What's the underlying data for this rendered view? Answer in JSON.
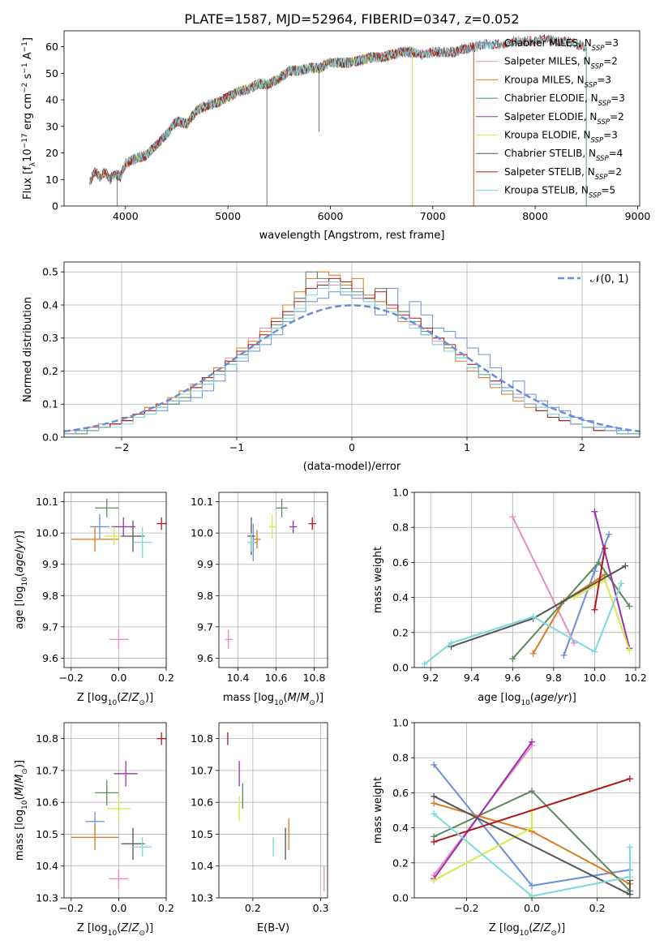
{
  "title": "PLATE=1587, MJD=52964, FIBERID=0347, z=0.052",
  "colors": [
    "#6a8fd6",
    "#e88ac4",
    "#d97a1d",
    "#5a8a5a",
    "#9b2fb0",
    "#d8e84a",
    "#555555",
    "#b01818",
    "#7ad8df"
  ],
  "chart_data": [
    {
      "id": "spectrum",
      "type": "line",
      "xlabel": "wavelength [Angstrom, rest frame]",
      "ylabel": "Flux [f_λ10^-17 erg cm^-2 s^-1 A^-1]",
      "xlim": [
        3400,
        9020
      ],
      "ylim": [
        0,
        66
      ],
      "xticks": [
        "4000",
        "5000",
        "6000",
        "7000",
        "8000",
        "9000"
      ],
      "yticks": [
        "0",
        "10",
        "20",
        "30",
        "40",
        "50",
        "60"
      ],
      "legend_position": "top-right",
      "x": [
        3650,
        3700,
        3750,
        3800,
        3850,
        3900,
        3950,
        4000,
        4100,
        4200,
        4300,
        4400,
        4500,
        4600,
        4700,
        4800,
        4900,
        5000,
        5100,
        5200,
        5300,
        5400,
        5500,
        5600,
        5700,
        5800,
        5900,
        6000,
        6100,
        6200,
        6300,
        6400,
        6500,
        6600,
        6700,
        6800,
        6900,
        7000,
        7100,
        7200,
        7300,
        7400,
        7500,
        7600,
        7700,
        7800,
        7900,
        8000,
        8100,
        8200,
        8300,
        8400,
        8500
      ],
      "series_values": [
        9,
        13,
        11,
        13,
        10,
        12,
        11,
        16,
        18,
        19,
        23,
        27,
        32,
        31,
        36,
        38,
        39,
        41,
        43,
        44,
        46,
        46,
        48,
        51,
        51,
        52,
        52,
        54,
        54,
        54,
        55,
        56,
        56,
        57,
        58,
        58,
        57,
        58,
        58,
        58,
        59,
        60,
        61,
        61,
        61,
        62,
        62,
        62,
        63,
        62,
        62,
        61,
        60
      ],
      "series": [
        {
          "name": "Chabrier MILES, N_SSP=3",
          "label_main": "Chabrier MILES, N",
          "label_sub": "SSP",
          "label_tail": "=3",
          "color": "#6a8fd6",
          "range": [
            3650,
            7400
          ]
        },
        {
          "name": "Salpeter MILES, N_SSP=2",
          "label_main": "Salpeter MILES, N",
          "label_sub": "SSP",
          "label_tail": "=2",
          "color": "#e88ac4",
          "range": [
            3650,
            7400
          ]
        },
        {
          "name": "Kroupa MILES, N_SSP=3",
          "label_main": "Kroupa MILES, N",
          "label_sub": "SSP",
          "label_tail": "=3",
          "color": "#d97a1d",
          "range": [
            3650,
            7400
          ]
        },
        {
          "name": "Chabrier ELODIE, N_SSP=3",
          "label_main": "Chabrier ELODIE, N",
          "label_sub": "SSP",
          "label_tail": "=3",
          "color": "#5a8a5a",
          "range": [
            3900,
            6800
          ]
        },
        {
          "name": "Salpeter ELODIE, N_SSP=2",
          "label_main": "Salpeter ELODIE, N",
          "label_sub": "SSP",
          "label_tail": "=2",
          "color": "#9b2fb0",
          "range": [
            3900,
            6800
          ]
        },
        {
          "name": "Kroupa ELODIE, N_SSP=3",
          "label_main": "Kroupa ELODIE, N",
          "label_sub": "SSP",
          "label_tail": "=3",
          "color": "#d8e84a",
          "range": [
            3900,
            6800
          ]
        },
        {
          "name": "Chabrier STELIB, N_SSP=4",
          "label_main": "Chabrier STELIB, N",
          "label_sub": "SSP",
          "label_tail": "=4",
          "color": "#555555",
          "range": [
            3650,
            8500
          ]
        },
        {
          "name": "Salpeter STELIB, N_SSP=2",
          "label_main": "Salpeter STELIB, N",
          "label_sub": "SSP",
          "label_tail": "=2",
          "color": "#b01818",
          "range": [
            3650,
            8500
          ]
        },
        {
          "name": "Kroupa STELIB, N_SSP=5",
          "label_main": "Kroupa STELIB, N",
          "label_sub": "SSP",
          "label_tail": "=5",
          "color": "#7ad8df",
          "range": [
            3650,
            8500
          ]
        }
      ]
    },
    {
      "id": "residuals",
      "type": "bar",
      "xlabel": "(data-model)/error",
      "ylabel": "Normed distribution",
      "xlim": [
        -2.5,
        2.5
      ],
      "ylim": [
        0,
        0.53
      ],
      "xticks": [
        "−2",
        "−1",
        "0",
        "1",
        "2"
      ],
      "yticks": [
        "0.0",
        "0.1",
        "0.2",
        "0.3",
        "0.4",
        "0.5"
      ],
      "grid": true,
      "legend_position": "top-right",
      "legend_label": "𝒩(0, 1)",
      "bin_width": 0.1,
      "bin_start": -2.5,
      "histograms": [
        [
          0.01,
          0.02,
          0.02,
          0.03,
          0.04,
          0.05,
          0.06,
          0.07,
          0.08,
          0.1,
          0.11,
          0.12,
          0.14,
          0.17,
          0.2,
          0.23,
          0.26,
          0.28,
          0.31,
          0.35,
          0.38,
          0.41,
          0.42,
          0.44,
          0.43,
          0.42,
          0.41,
          0.37,
          0.45,
          0.38,
          0.41,
          0.37,
          0.33,
          0.32,
          0.3,
          0.27,
          0.25,
          0.21,
          0.15,
          0.17,
          0.13,
          0.11,
          0.09,
          0.08,
          0.06,
          0.05,
          0.03,
          0.03,
          0.02,
          0.01
        ],
        [
          0.02,
          0.02,
          0.03,
          0.03,
          0.04,
          0.05,
          0.07,
          0.09,
          0.1,
          0.11,
          0.12,
          0.15,
          0.16,
          0.19,
          0.24,
          0.25,
          0.3,
          0.33,
          0.36,
          0.38,
          0.42,
          0.45,
          0.47,
          0.46,
          0.44,
          0.45,
          0.42,
          0.41,
          0.39,
          0.36,
          0.34,
          0.31,
          0.29,
          0.27,
          0.25,
          0.22,
          0.18,
          0.17,
          0.14,
          0.13,
          0.1,
          0.09,
          0.07,
          0.06,
          0.04,
          0.03,
          0.03,
          0.02,
          0.01,
          0.01
        ],
        [
          0.01,
          0.02,
          0.03,
          0.04,
          0.04,
          0.06,
          0.07,
          0.09,
          0.1,
          0.12,
          0.14,
          0.16,
          0.18,
          0.21,
          0.23,
          0.27,
          0.29,
          0.32,
          0.36,
          0.4,
          0.44,
          0.48,
          0.5,
          0.49,
          0.46,
          0.48,
          0.43,
          0.41,
          0.39,
          0.35,
          0.33,
          0.31,
          0.28,
          0.26,
          0.23,
          0.2,
          0.18,
          0.15,
          0.13,
          0.11,
          0.09,
          0.08,
          0.06,
          0.05,
          0.04,
          0.03,
          0.02,
          0.02,
          0.01,
          0.01
        ],
        [
          0.01,
          0.01,
          0.02,
          0.03,
          0.04,
          0.05,
          0.06,
          0.08,
          0.09,
          0.1,
          0.12,
          0.15,
          0.17,
          0.2,
          0.22,
          0.25,
          0.28,
          0.3,
          0.34,
          0.37,
          0.42,
          0.5,
          0.48,
          0.47,
          0.45,
          0.44,
          0.42,
          0.45,
          0.4,
          0.38,
          0.35,
          0.32,
          0.3,
          0.27,
          0.24,
          0.21,
          0.19,
          0.16,
          0.14,
          0.12,
          0.1,
          0.08,
          0.07,
          0.05,
          0.04,
          0.03,
          0.02,
          0.02,
          0.01,
          0.01
        ],
        [
          0.01,
          0.02,
          0.02,
          0.03,
          0.04,
          0.05,
          0.07,
          0.08,
          0.1,
          0.11,
          0.13,
          0.15,
          0.18,
          0.2,
          0.23,
          0.26,
          0.28,
          0.31,
          0.35,
          0.38,
          0.41,
          0.45,
          0.46,
          0.48,
          0.47,
          0.43,
          0.42,
          0.44,
          0.4,
          0.37,
          0.36,
          0.33,
          0.3,
          0.28,
          0.25,
          0.22,
          0.19,
          0.17,
          0.14,
          0.12,
          0.1,
          0.08,
          0.06,
          0.05,
          0.04,
          0.03,
          0.02,
          0.02,
          0.01,
          0.01
        ],
        [
          0.01,
          0.02,
          0.02,
          0.03,
          0.03,
          0.04,
          0.06,
          0.07,
          0.09,
          0.11,
          0.13,
          0.14,
          0.16,
          0.19,
          0.22,
          0.24,
          0.27,
          0.3,
          0.33,
          0.36,
          0.39,
          0.43,
          0.45,
          0.47,
          0.44,
          0.43,
          0.41,
          0.4,
          0.38,
          0.36,
          0.33,
          0.31,
          0.28,
          0.26,
          0.24,
          0.21,
          0.19,
          0.16,
          0.14,
          0.12,
          0.1,
          0.09,
          0.07,
          0.06,
          0.04,
          0.03,
          0.03,
          0.02,
          0.01,
          0.01
        ]
      ],
      "gaussian": {
        "mean": 0,
        "sigma": 1
      }
    },
    {
      "id": "age-vs-Z",
      "type": "scatter",
      "xlabel": "Z [log10(Z/Z⊙)]",
      "ylabel": "age [log10(age/yr)]",
      "xlim": [
        -0.23,
        0.2
      ],
      "ylim": [
        9.57,
        10.13
      ],
      "xticks": [
        "−0.2",
        "0.0",
        "0.2"
      ],
      "yticks": [
        "9.6",
        "9.7",
        "9.8",
        "9.9",
        "10.0",
        "10.1"
      ],
      "points": [
        {
          "x": -0.08,
          "y": 10.02,
          "dx": 0.04,
          "dy": 0.04
        },
        {
          "x": 0.0,
          "y": 9.66,
          "dx": 0.04,
          "dy": 0.03
        },
        {
          "x": -0.1,
          "y": 9.98,
          "dx": 0.1,
          "dy": 0.04
        },
        {
          "x": -0.05,
          "y": 10.08,
          "dx": 0.05,
          "dy": 0.03
        },
        {
          "x": 0.02,
          "y": 10.02,
          "dx": 0.05,
          "dy": 0.03
        },
        {
          "x": -0.02,
          "y": 9.99,
          "dx": 0.04,
          "dy": 0.03
        },
        {
          "x": 0.06,
          "y": 9.99,
          "dx": 0.05,
          "dy": 0.05
        },
        {
          "x": 0.18,
          "y": 10.03,
          "dx": 0.02,
          "dy": 0.02
        },
        {
          "x": 0.1,
          "y": 9.97,
          "dx": 0.04,
          "dy": 0.05
        }
      ]
    },
    {
      "id": "age-vs-mass",
      "type": "scatter",
      "xlabel": "mass [log10(M/M⊙)]",
      "ylabel": "",
      "xlim": [
        10.3,
        10.87
      ],
      "ylim": [
        9.57,
        10.13
      ],
      "xticks": [
        "10.4",
        "10.6",
        "10.8"
      ],
      "yticks": [
        "9.6",
        "9.7",
        "9.8",
        "9.9",
        "10.0",
        "10.1"
      ],
      "points": [
        {
          "x": 10.48,
          "y": 9.97,
          "dx": 0.02,
          "dy": 0.06
        },
        {
          "x": 10.35,
          "y": 9.66,
          "dx": 0.02,
          "dy": 0.03
        },
        {
          "x": 10.5,
          "y": 9.98,
          "dx": 0.02,
          "dy": 0.03
        },
        {
          "x": 10.63,
          "y": 10.08,
          "dx": 0.03,
          "dy": 0.03
        },
        {
          "x": 10.69,
          "y": 10.02,
          "dx": 0.02,
          "dy": 0.02
        },
        {
          "x": 10.58,
          "y": 10.02,
          "dx": 0.02,
          "dy": 0.04
        },
        {
          "x": 10.47,
          "y": 9.99,
          "dx": 0.02,
          "dy": 0.06
        },
        {
          "x": 10.79,
          "y": 10.03,
          "dx": 0.02,
          "dy": 0.02
        },
        {
          "x": 10.47,
          "y": 9.97,
          "dx": 0.02,
          "dy": 0.03
        }
      ]
    },
    {
      "id": "weight-vs-age",
      "type": "line",
      "xlabel": "age [log10(age/yr)]",
      "ylabel": "mass weight",
      "xlim": [
        9.12,
        10.22
      ],
      "ylim": [
        0,
        1
      ],
      "xticks": [
        "9.2",
        "9.4",
        "9.6",
        "9.8",
        "10.0",
        "10.2"
      ],
      "yticks": [
        "0.0",
        "0.2",
        "0.4",
        "0.6",
        "0.8",
        "1.0"
      ],
      "series": [
        {
          "x": [
            9.85,
            10.0,
            10.07
          ],
          "y": [
            0.07,
            0.55,
            0.76
          ]
        },
        {
          "x": [
            9.6,
            9.9
          ],
          "y": [
            0.86,
            0.14
          ]
        },
        {
          "x": [
            9.7,
            9.85,
            10.05
          ],
          "y": [
            0.08,
            0.38,
            0.53
          ]
        },
        {
          "x": [
            9.6,
            10.02,
            10.17
          ],
          "y": [
            0.05,
            0.6,
            0.35
          ]
        },
        {
          "x": [
            10.0,
            10.17
          ],
          "y": [
            0.89,
            0.11
          ]
        },
        {
          "x": [
            9.9,
            10.05,
            10.17
          ],
          "y": [
            0.4,
            0.5,
            0.1
          ]
        },
        {
          "x": [
            9.3,
            9.7,
            10.15
          ],
          "y": [
            0.12,
            0.28,
            0.58
          ]
        },
        {
          "x": [
            10.0,
            10.05
          ],
          "y": [
            0.33,
            0.68
          ]
        },
        {
          "x": [
            9.17,
            9.3,
            9.7,
            10.0,
            10.13
          ],
          "y": [
            0.02,
            0.14,
            0.29,
            0.09,
            0.48
          ]
        }
      ]
    },
    {
      "id": "mass-vs-Z",
      "type": "scatter",
      "xlabel": "Z [log10(Z/Z⊙)]",
      "ylabel": "mass [log10(M/M⊙)]",
      "xlim": [
        -0.23,
        0.2
      ],
      "ylim": [
        10.3,
        10.85
      ],
      "xticks": [
        "−0.2",
        "0.0",
        "0.2"
      ],
      "yticks": [
        "10.3",
        "10.4",
        "10.5",
        "10.6",
        "10.7",
        "10.8"
      ],
      "points": [
        {
          "x": -0.1,
          "y": 10.54,
          "dx": 0.04,
          "dy": 0.03
        },
        {
          "x": 0.0,
          "y": 10.36,
          "dx": 0.04,
          "dy": 0.03
        },
        {
          "x": -0.1,
          "y": 10.49,
          "dx": 0.1,
          "dy": 0.04
        },
        {
          "x": -0.05,
          "y": 10.63,
          "dx": 0.05,
          "dy": 0.04
        },
        {
          "x": 0.03,
          "y": 10.69,
          "dx": 0.05,
          "dy": 0.04
        },
        {
          "x": 0.0,
          "y": 10.58,
          "dx": 0.05,
          "dy": 0.04
        },
        {
          "x": 0.06,
          "y": 10.47,
          "dx": 0.05,
          "dy": 0.05
        },
        {
          "x": 0.18,
          "y": 10.8,
          "dx": 0.02,
          "dy": 0.02
        },
        {
          "x": 0.1,
          "y": 10.46,
          "dx": 0.04,
          "dy": 0.03
        }
      ]
    },
    {
      "id": "mass-vs-ebv",
      "type": "scatter",
      "xlabel": "E(B-V)",
      "ylabel": "",
      "xlim": [
        0.15,
        0.31
      ],
      "ylim": [
        10.3,
        10.85
      ],
      "xticks": [
        "0.2",
        "0.3"
      ],
      "yticks": [
        "10.3",
        "10.4",
        "10.5",
        "10.6",
        "10.7",
        "10.8"
      ],
      "points": [
        {
          "x": 0.163,
          "y": 10.8,
          "dy": 0.02
        },
        {
          "x": 0.18,
          "y": 10.69,
          "dy": 0.04
        },
        {
          "x": 0.18,
          "y": 10.58,
          "dy": 0.04
        },
        {
          "x": 0.185,
          "y": 10.62,
          "dy": 0.04
        },
        {
          "x": 0.23,
          "y": 10.46,
          "dy": 0.03
        },
        {
          "x": 0.248,
          "y": 10.47,
          "dy": 0.05
        },
        {
          "x": 0.253,
          "y": 10.5,
          "dy": 0.05
        },
        {
          "x": 0.305,
          "y": 10.36,
          "dy": 0.04
        }
      ],
      "point_colors": [
        "#b01818",
        "#9b2fb0",
        "#d8e84a",
        "#5a8a5a",
        "#7ad8df",
        "#555555",
        "#d97a1d",
        "#e88ac4"
      ]
    },
    {
      "id": "weight-vs-Z",
      "type": "line",
      "xlabel": "Z [log10(Z/Z⊙)]",
      "ylabel": "mass weight",
      "xlim": [
        -0.36,
        0.33
      ],
      "ylim": [
        0,
        1
      ],
      "xticks": [
        "−0.2",
        "0.0",
        "0.2"
      ],
      "yticks": [
        "0.0",
        "0.2",
        "0.4",
        "0.6",
        "0.8",
        "1.0"
      ],
      "series": [
        {
          "x": [
            -0.3,
            0.0,
            0.3
          ],
          "y": [
            0.76,
            0.07,
            0.16
          ]
        },
        {
          "x": [
            -0.3,
            0.0
          ],
          "y": [
            0.13,
            0.87
          ]
        },
        {
          "x": [
            -0.3,
            0.0,
            0.3
          ],
          "y": [
            0.54,
            0.38,
            0.08
          ]
        },
        {
          "x": [
            -0.3,
            0.0,
            0.3
          ],
          "y": [
            0.35,
            0.61,
            0.04
          ]
        },
        {
          "x": [
            -0.3,
            0.0
          ],
          "y": [
            0.11,
            0.89
          ]
        },
        {
          "x": [
            -0.3,
            0.0,
            0.0
          ],
          "y": [
            0.1,
            0.4,
            0.5
          ]
        },
        {
          "x": [
            -0.3,
            0.3,
            0.3
          ],
          "y": [
            0.58,
            0.02,
            0.1
          ]
        },
        {
          "x": [
            -0.3,
            0.3
          ],
          "y": [
            0.32,
            0.68
          ]
        },
        {
          "x": [
            -0.3,
            0.0,
            0.3,
            0.3
          ],
          "y": [
            0.48,
            0.01,
            0.12,
            0.29
          ]
        }
      ]
    }
  ]
}
